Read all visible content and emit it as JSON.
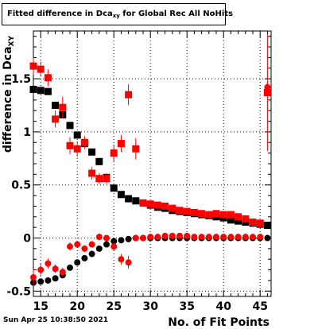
{
  "title": {
    "prefix": "Fitted difference in Dca",
    "subscript": "xy",
    "suffix": " for Global Rec All NoHits"
  },
  "footer": "Sun Apr 25 10:38:50 2021",
  "chart_data": {
    "type": "scatter",
    "xlabel": "No. of Fit Points",
    "ylabel": "difference in Dca",
    "ylabel_subscript": "XY",
    "xlim": [
      14,
      46.5
    ],
    "ylim": [
      -0.55,
      1.95
    ],
    "grid": true,
    "x_ticks": [
      15,
      20,
      25,
      30,
      35,
      40,
      45
    ],
    "y_ticks": [
      -0.5,
      0,
      0.5,
      1,
      1.5
    ],
    "y_tick_labels": [
      "-0.5",
      "0",
      "0.5",
      "1",
      "1.5"
    ],
    "series": [
      {
        "color": "#000000",
        "marker": "square",
        "points": [
          {
            "x": 14,
            "y": 1.4
          },
          {
            "x": 15,
            "y": 1.39
          },
          {
            "x": 16,
            "y": 1.38
          },
          {
            "x": 17,
            "y": 1.25
          },
          {
            "x": 18,
            "y": 1.16
          },
          {
            "x": 19,
            "y": 1.06
          },
          {
            "x": 20,
            "y": 0.97
          },
          {
            "x": 21,
            "y": 0.89
          },
          {
            "x": 22,
            "y": 0.81
          },
          {
            "x": 23,
            "y": 0.72
          },
          {
            "x": 24,
            "y": 0.57
          },
          {
            "x": 25,
            "y": 0.47
          },
          {
            "x": 26,
            "y": 0.41
          },
          {
            "x": 27,
            "y": 0.37
          },
          {
            "x": 28,
            "y": 0.35
          },
          {
            "x": 29,
            "y": 0.33
          },
          {
            "x": 30,
            "y": 0.31
          },
          {
            "x": 31,
            "y": 0.29
          },
          {
            "x": 32,
            "y": 0.28
          },
          {
            "x": 33,
            "y": 0.26
          },
          {
            "x": 34,
            "y": 0.25
          },
          {
            "x": 35,
            "y": 0.24
          },
          {
            "x": 36,
            "y": 0.23
          },
          {
            "x": 37,
            "y": 0.22
          },
          {
            "x": 38,
            "y": 0.21
          },
          {
            "x": 39,
            "y": 0.2
          },
          {
            "x": 40,
            "y": 0.19
          },
          {
            "x": 41,
            "y": 0.17
          },
          {
            "x": 42,
            "y": 0.16
          },
          {
            "x": 43,
            "y": 0.15
          },
          {
            "x": 44,
            "y": 0.14
          },
          {
            "x": 45,
            "y": 0.13
          },
          {
            "x": 46,
            "y": 0.12
          }
        ]
      },
      {
        "color": "#000000",
        "marker": "circle",
        "points": [
          {
            "x": 14,
            "y": -0.42
          },
          {
            "x": 15,
            "y": -0.41
          },
          {
            "x": 16,
            "y": -0.4
          },
          {
            "x": 17,
            "y": -0.38
          },
          {
            "x": 18,
            "y": -0.35
          },
          {
            "x": 19,
            "y": -0.28
          },
          {
            "x": 20,
            "y": -0.23
          },
          {
            "x": 21,
            "y": -0.19
          },
          {
            "x": 22,
            "y": -0.15
          },
          {
            "x": 23,
            "y": -0.1
          },
          {
            "x": 24,
            "y": -0.06
          },
          {
            "x": 25,
            "y": -0.03
          },
          {
            "x": 26,
            "y": -0.02
          },
          {
            "x": 27,
            "y": -0.01
          },
          {
            "x": 28,
            "y": 0
          },
          {
            "x": 29,
            "y": 0
          },
          {
            "x": 30,
            "y": 0
          },
          {
            "x": 31,
            "y": 0
          },
          {
            "x": 32,
            "y": 0
          },
          {
            "x": 33,
            "y": 0
          },
          {
            "x": 34,
            "y": 0
          },
          {
            "x": 35,
            "y": 0
          },
          {
            "x": 36,
            "y": 0
          },
          {
            "x": 37,
            "y": 0
          },
          {
            "x": 38,
            "y": 0
          },
          {
            "x": 39,
            "y": 0
          },
          {
            "x": 40,
            "y": 0
          },
          {
            "x": 41,
            "y": 0
          },
          {
            "x": 42,
            "y": 0
          },
          {
            "x": 43,
            "y": 0
          },
          {
            "x": 44,
            "y": 0
          },
          {
            "x": 45,
            "y": 0
          },
          {
            "x": 46,
            "y": 0
          }
        ]
      },
      {
        "color": "#ff0000",
        "marker": "square",
        "points": [
          {
            "x": 14,
            "y": 1.62,
            "err": 0.08
          },
          {
            "x": 15,
            "y": 1.59,
            "err": 0.07
          },
          {
            "x": 16,
            "y": 1.51,
            "err": 0.08
          },
          {
            "x": 17,
            "y": 1.12,
            "err": 0.08
          },
          {
            "x": 18,
            "y": 1.23,
            "err": 0.1
          },
          {
            "x": 19,
            "y": 0.87,
            "err": 0.08
          },
          {
            "x": 20,
            "y": 0.84,
            "err": 0.07
          },
          {
            "x": 21,
            "y": 0.9,
            "err": 0.06
          },
          {
            "x": 22,
            "y": 0.61,
            "err": 0.06
          },
          {
            "x": 23,
            "y": 0.56,
            "err": 0.05
          },
          {
            "x": 24,
            "y": 0.56,
            "err": 0.05
          },
          {
            "x": 25,
            "y": 0.8,
            "err": 0.08
          },
          {
            "x": 26,
            "y": 0.89,
            "err": 0.08
          },
          {
            "x": 27,
            "y": 1.35,
            "err": 0.1
          },
          {
            "x": 28,
            "y": 0.84,
            "err": 0.1
          },
          {
            "x": 29,
            "y": 0.33,
            "err": 0.02
          },
          {
            "x": 30,
            "y": 0.32,
            "err": 0.02
          },
          {
            "x": 31,
            "y": 0.31,
            "err": 0.02
          },
          {
            "x": 32,
            "y": 0.3,
            "err": 0.02
          },
          {
            "x": 33,
            "y": 0.28,
            "err": 0.02
          },
          {
            "x": 34,
            "y": 0.26,
            "err": 0.02
          },
          {
            "x": 35,
            "y": 0.25,
            "err": 0.02
          },
          {
            "x": 36,
            "y": 0.24,
            "err": 0.02
          },
          {
            "x": 37,
            "y": 0.23,
            "err": 0.02
          },
          {
            "x": 38,
            "y": 0.22,
            "err": 0.02
          },
          {
            "x": 39,
            "y": 0.23,
            "err": 0.02
          },
          {
            "x": 40,
            "y": 0.22,
            "err": 0.02
          },
          {
            "x": 41,
            "y": 0.22,
            "err": 0.02
          },
          {
            "x": 42,
            "y": 0.2,
            "err": 0.02
          },
          {
            "x": 43,
            "y": 0.18,
            "err": 0.02
          },
          {
            "x": 44,
            "y": 0.15,
            "err": 0.02
          },
          {
            "x": 45,
            "y": 0.14,
            "err": 0.02
          },
          {
            "x": 46,
            "y": 1.37,
            "err": 0.55
          }
        ]
      },
      {
        "color": "#ff0000",
        "marker": "circle",
        "points": [
          {
            "x": 14,
            "y": -0.37,
            "err": 0.08
          },
          {
            "x": 15,
            "y": -0.3,
            "err": 0.06
          },
          {
            "x": 16,
            "y": -0.24,
            "err": 0.05
          },
          {
            "x": 17,
            "y": -0.29,
            "err": 0.04
          },
          {
            "x": 18,
            "y": -0.32,
            "err": 0.04
          },
          {
            "x": 19,
            "y": -0.08,
            "err": 0.04
          },
          {
            "x": 20,
            "y": -0.06,
            "err": 0.03
          },
          {
            "x": 21,
            "y": -0.1,
            "err": 0.03
          },
          {
            "x": 22,
            "y": -0.06,
            "err": 0.03
          },
          {
            "x": 23,
            "y": 0.01,
            "err": 0.03
          },
          {
            "x": 24,
            "y": 0,
            "err": 0.03
          },
          {
            "x": 25,
            "y": -0.08,
            "err": 0.04
          },
          {
            "x": 26,
            "y": -0.2,
            "err": 0.05
          },
          {
            "x": 27,
            "y": -0.23,
            "err": 0.06
          },
          {
            "x": 28,
            "y": 0,
            "err": 0.02
          },
          {
            "x": 29,
            "y": 0,
            "err": 0.01
          },
          {
            "x": 30,
            "y": 0.01,
            "err": 0.01
          },
          {
            "x": 31,
            "y": 0.01,
            "err": 0.01
          },
          {
            "x": 32,
            "y": 0.02,
            "err": 0.01
          },
          {
            "x": 33,
            "y": 0.02,
            "err": 0.01
          },
          {
            "x": 34,
            "y": 0.02,
            "err": 0.01
          },
          {
            "x": 35,
            "y": 0.02,
            "err": 0.01
          },
          {
            "x": 36,
            "y": 0.01,
            "err": 0.01
          },
          {
            "x": 37,
            "y": 0.01,
            "err": 0.01
          },
          {
            "x": 38,
            "y": 0.01,
            "err": 0.01
          },
          {
            "x": 39,
            "y": 0.01,
            "err": 0.01
          },
          {
            "x": 40,
            "y": 0.01,
            "err": 0.01
          },
          {
            "x": 41,
            "y": 0.01,
            "err": 0.01
          },
          {
            "x": 42,
            "y": 0.01,
            "err": 0.01
          },
          {
            "x": 43,
            "y": 0.01,
            "err": 0.01
          },
          {
            "x": 44,
            "y": 0.01,
            "err": 0.01
          },
          {
            "x": 45,
            "y": 0.01,
            "err": 0.01
          },
          {
            "x": 46,
            "y": 1.42,
            "err": 0.05
          }
        ]
      }
    ]
  }
}
